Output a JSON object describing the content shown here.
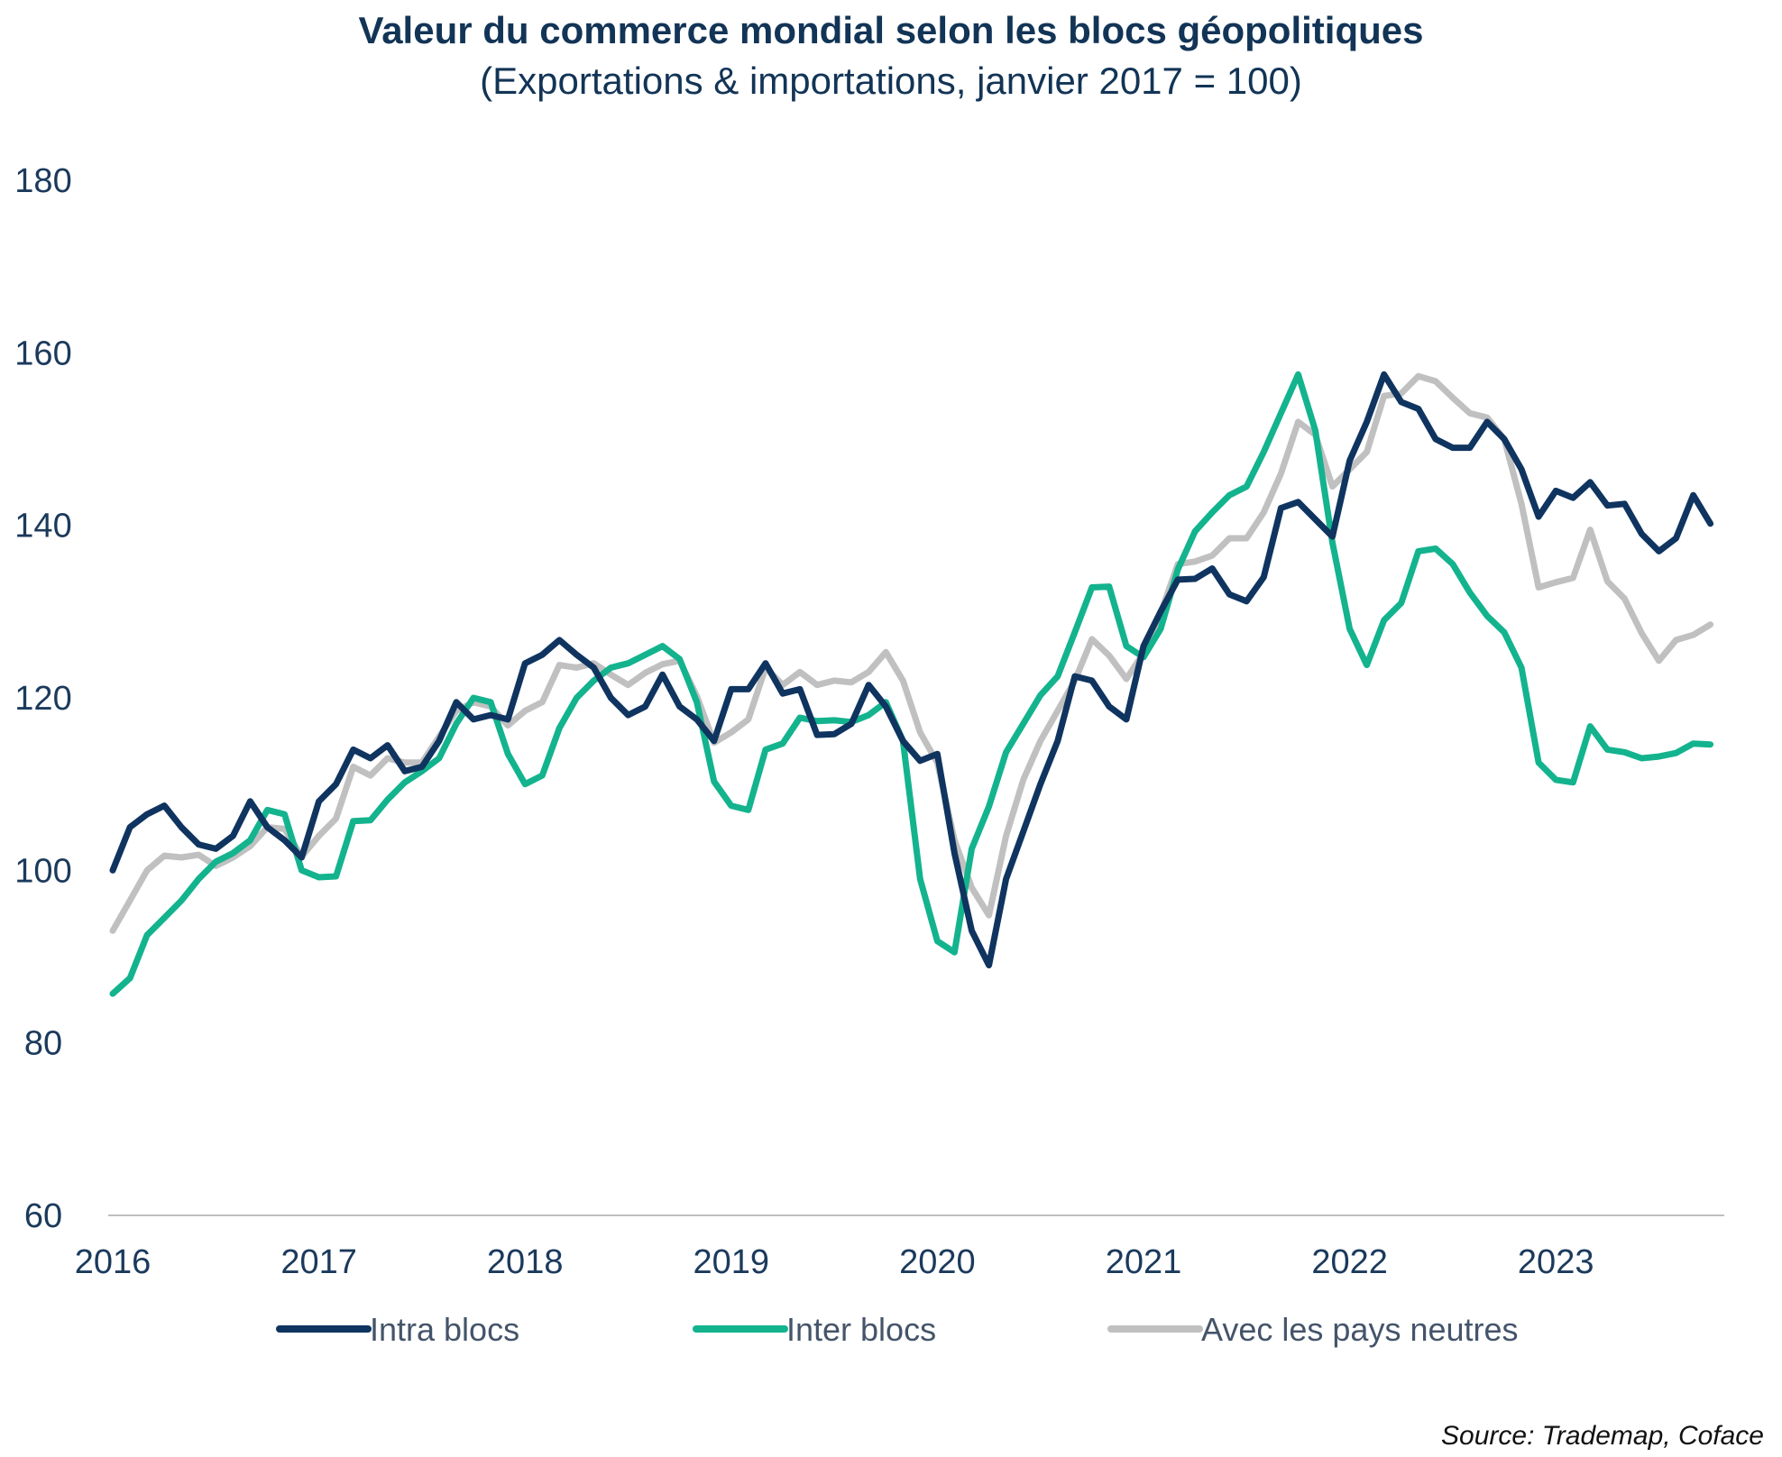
{
  "title": "Valeur du commerce mondial selon les blocs géopolitiques",
  "subtitle": "(Exportations & importations, janvier 2017 = 100)",
  "source": "Source:  Trademap, Coface",
  "colors": {
    "intra": "#0f3460",
    "inter": "#13b38e",
    "neutral": "#c0c0c0",
    "axis": "#bfbfbf"
  },
  "chart_data": {
    "type": "line",
    "x_start": "2016-01",
    "x_end": "2023-10",
    "frequency": "monthly",
    "xticks": [
      "2016",
      "2017",
      "2018",
      "2019",
      "2020",
      "2021",
      "2022",
      "2023"
    ],
    "yticks": [
      "60",
      "80",
      "100",
      "120",
      "140",
      "160",
      "180"
    ],
    "ylim": [
      60,
      180
    ],
    "legend_position": "bottom",
    "grid": false,
    "series": [
      {
        "name": "Intra blocs",
        "color": "#0f3460",
        "values": [
          100,
          105,
          106.5,
          107.5,
          105,
          103,
          102.5,
          104,
          108,
          105,
          103.5,
          101.5,
          108,
          110,
          114,
          113,
          114.5,
          111.5,
          112,
          115,
          119.5,
          117.5,
          118,
          117.5,
          124,
          125,
          126.7,
          125,
          123.5,
          120,
          118,
          119,
          122.7,
          119,
          117.5,
          115,
          121,
          121,
          124,
          120.5,
          121,
          115.7,
          115.8,
          117,
          121.5,
          119,
          115,
          112.7,
          113.5,
          102,
          93,
          89,
          99,
          104.5,
          110,
          115,
          122.5,
          122,
          119,
          117.5,
          126,
          130,
          133.7,
          133.8,
          135,
          132,
          131.2,
          134,
          142,
          142.7,
          140.7,
          138.7,
          147.5,
          152,
          157.5,
          154.3,
          153.5,
          150,
          149,
          149,
          152,
          150,
          146.5,
          141,
          144,
          143.2,
          145,
          142.3,
          142.5,
          139,
          137,
          138.5,
          143.5,
          140.2
        ]
      },
      {
        "name": "Inter blocs",
        "color": "#13b38e",
        "values": [
          85.7,
          87.5,
          92.5,
          94.5,
          96.5,
          99,
          101,
          102,
          103.5,
          107,
          106.5,
          100,
          99.2,
          99.3,
          105.7,
          105.8,
          108.2,
          110.2,
          111.5,
          113,
          117,
          120,
          119.5,
          113.5,
          110,
          111,
          116.5,
          120,
          122,
          123.5,
          124,
          125,
          126,
          124.5,
          119.5,
          110.3,
          107.5,
          107,
          114,
          114.7,
          117.7,
          117.3,
          117.4,
          117.2,
          118,
          119.5,
          115,
          99,
          91.8,
          90.5,
          102.5,
          107.4,
          113.7,
          117,
          120.3,
          122.5,
          127.6,
          132.8,
          132.9,
          126,
          124.7,
          128,
          134.9,
          139.3,
          141.5,
          143.5,
          144.5,
          148.5,
          153,
          157.5,
          151,
          138,
          128,
          123.8,
          129,
          131,
          137,
          137.3,
          135.5,
          132.2,
          129.5,
          127.6,
          123.5,
          112.5,
          110.5,
          110.2,
          116.7,
          114,
          113.7,
          113,
          113.2,
          113.6,
          114.7,
          114.6
        ]
      },
      {
        "name": "Avec les pays neutres",
        "color": "#c0c0c0",
        "values": [
          93,
          96.5,
          100,
          101.7,
          101.5,
          101.8,
          100.5,
          101.5,
          102.8,
          105,
          104.8,
          101.6,
          104,
          106,
          112,
          111,
          113,
          112.5,
          112.5,
          115.5,
          118.5,
          119.5,
          119,
          116.8,
          118.5,
          119.5,
          123.8,
          123.5,
          124,
          122.7,
          121.5,
          122.9,
          123.9,
          124.3,
          120.2,
          114.8,
          116,
          117.5,
          123.5,
          121.5,
          123,
          121.5,
          122,
          121.8,
          123,
          125.3,
          122,
          116,
          112.5,
          103.5,
          98,
          94.8,
          104,
          110.5,
          115,
          118.5,
          122,
          126.8,
          124.9,
          122.2,
          125.2,
          129.8,
          135.5,
          135.8,
          136.5,
          138.5,
          138.5,
          141.5,
          146,
          152,
          150.5,
          144.5,
          146.5,
          148.5,
          155,
          155.3,
          157.3,
          156.7,
          154.8,
          153,
          152.5,
          150,
          142.5,
          132.8,
          133.4,
          133.9,
          139.5,
          133.5,
          131.5,
          127.5,
          124.3,
          126.7,
          127.3,
          128.5
        ]
      }
    ]
  }
}
